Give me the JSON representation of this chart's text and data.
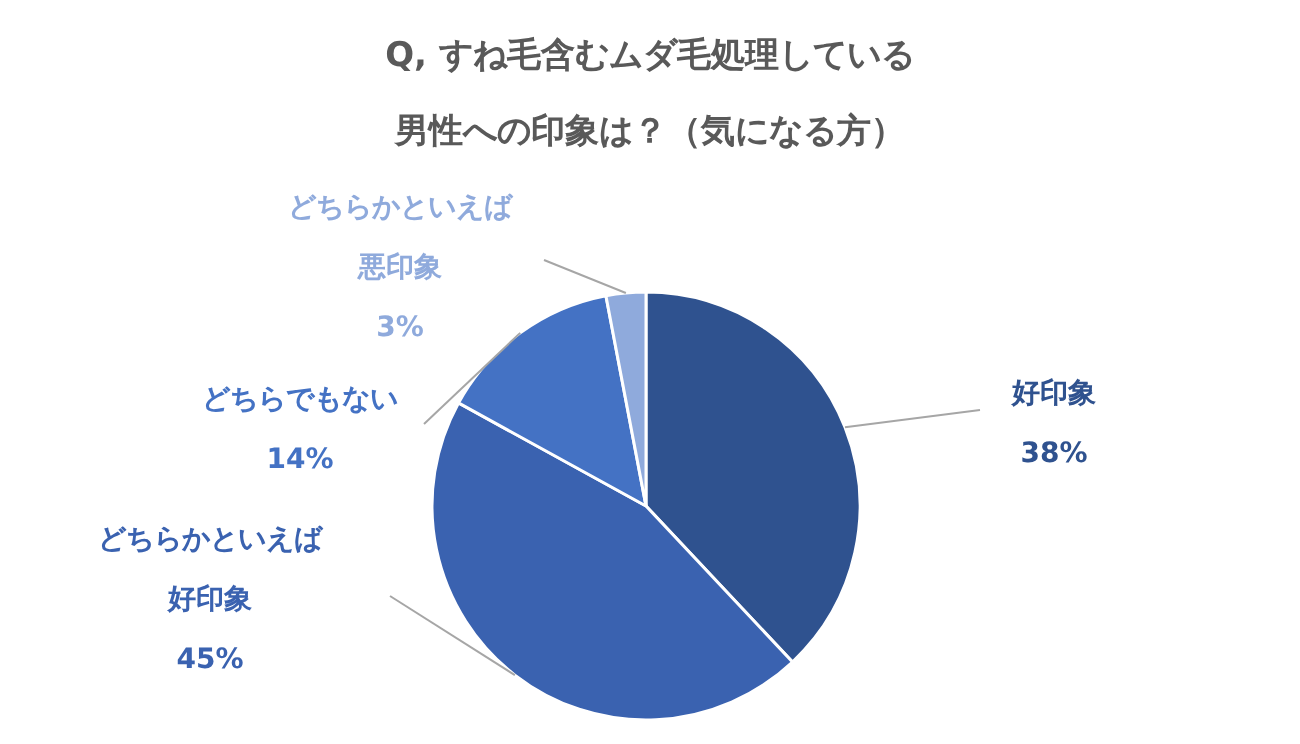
{
  "chart_data": {
    "type": "pie",
    "title": "Q, すね毛含むムダ毛処理している男性への印象は？（気になる方）",
    "categories": [
      "好印象",
      "どちらかといえば好印象",
      "どちらでもない",
      "どちらかといえば悪印象"
    ],
    "values": [
      38,
      45,
      14,
      3
    ],
    "value_labels": [
      "38%",
      "45%",
      "14%",
      "3%"
    ],
    "colors": [
      "#2f528f",
      "#3a62b0",
      "#4472c4",
      "#8faadc"
    ]
  }
}
